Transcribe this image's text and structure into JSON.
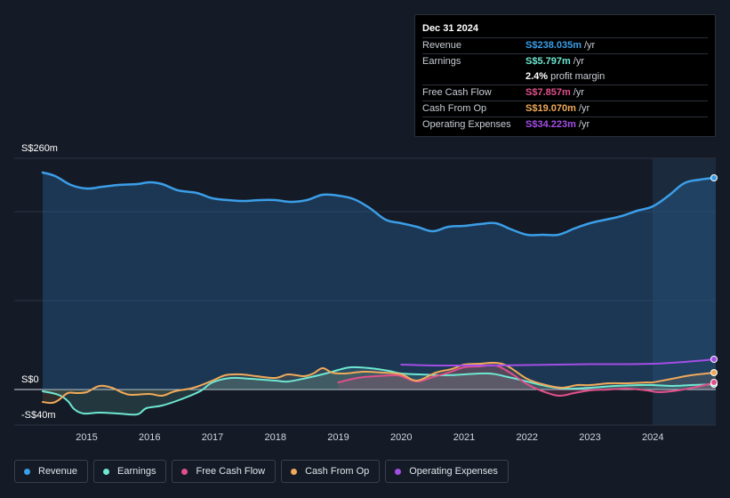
{
  "tooltip": {
    "date": "Dec 31 2024",
    "rows": [
      {
        "label": "Revenue",
        "value": "S$238.035m",
        "unit": "/yr",
        "color": "#3b9ee8"
      },
      {
        "label": "Earnings",
        "value": "S$5.797m",
        "unit": "/yr",
        "color": "#6ee7d2"
      },
      {
        "label": "",
        "value": "2.4%",
        "unit": "profit margin",
        "color": "#ffffff"
      },
      {
        "label": "Free Cash Flow",
        "value": "S$7.857m",
        "unit": "/yr",
        "color": "#e0508a"
      },
      {
        "label": "Cash From Op",
        "value": "S$19.070m",
        "unit": "/yr",
        "color": "#f0a95a"
      },
      {
        "label": "Operating Expenses",
        "value": "S$34.223m",
        "unit": "/yr",
        "color": "#a24ee6"
      }
    ]
  },
  "legend": [
    {
      "label": "Revenue",
      "color": "#3b9ee8"
    },
    {
      "label": "Earnings",
      "color": "#6ee7d2"
    },
    {
      "label": "Free Cash Flow",
      "color": "#e0508a"
    },
    {
      "label": "Cash From Op",
      "color": "#f0a95a"
    },
    {
      "label": "Operating Expenses",
      "color": "#a24ee6"
    }
  ],
  "chart_data": {
    "type": "line",
    "title": "",
    "y_axis_labels": {
      "top": "S$260m",
      "zero": "S$0",
      "bottom": "-S$40m"
    },
    "ylim": [
      -40,
      260
    ],
    "xlim": [
      2014.3,
      2025.0
    ],
    "x_ticks": [
      2015,
      2016,
      2017,
      2018,
      2019,
      2020,
      2021,
      2022,
      2023,
      2024
    ],
    "x_tick_labels": [
      "2015",
      "2016",
      "2017",
      "2018",
      "2019",
      "2020",
      "2021",
      "2022",
      "2023",
      "2024"
    ],
    "highlight_start": 2024.0,
    "series": [
      {
        "name": "Revenue",
        "color": "#3b9ee8",
        "fill": true,
        "x": [
          2014.3,
          2014.5,
          2014.75,
          2015.0,
          2015.25,
          2015.5,
          2015.8,
          2016.0,
          2016.2,
          2016.45,
          2016.75,
          2017.0,
          2017.25,
          2017.5,
          2017.75,
          2018.0,
          2018.25,
          2018.5,
          2018.75,
          2019.0,
          2019.25,
          2019.5,
          2019.75,
          2020.0,
          2020.25,
          2020.5,
          2020.75,
          2021.0,
          2021.25,
          2021.5,
          2021.75,
          2022.0,
          2022.25,
          2022.5,
          2022.75,
          2023.0,
          2023.25,
          2023.5,
          2023.75,
          2024.0,
          2024.25,
          2024.5,
          2024.75,
          2025.0
        ],
        "values": [
          244,
          240,
          230,
          226,
          228,
          230,
          231,
          233,
          231,
          224,
          221,
          215,
          213,
          212,
          213,
          213,
          211,
          213,
          219,
          218,
          214,
          204,
          191,
          187,
          183,
          178,
          183,
          184,
          186,
          187,
          180,
          174,
          174,
          174,
          181,
          187,
          191,
          195,
          201,
          206,
          218,
          232,
          236,
          238
        ]
      },
      {
        "name": "Earnings",
        "color": "#6ee7d2",
        "fill": true,
        "x": [
          2014.3,
          2014.55,
          2014.7,
          2014.8,
          2014.95,
          2015.2,
          2015.5,
          2015.8,
          2015.95,
          2016.2,
          2016.5,
          2016.8,
          2017.0,
          2017.3,
          2017.6,
          2018.0,
          2018.2,
          2018.5,
          2018.8,
          2019.0,
          2019.2,
          2019.5,
          2019.8,
          2020.0,
          2020.3,
          2020.7,
          2021.0,
          2021.4,
          2021.7,
          2022.0,
          2022.3,
          2022.6,
          2023.0,
          2023.4,
          2023.8,
          2024.0,
          2024.3,
          2024.6,
          2025.0
        ],
        "values": [
          -2,
          -6,
          -13,
          -22,
          -27,
          -26,
          -27,
          -28,
          -21,
          -18,
          -11,
          -2,
          8,
          13,
          12,
          10,
          9,
          13,
          18,
          22,
          25,
          24,
          21,
          18,
          17,
          16,
          17,
          18,
          14,
          9,
          4,
          1,
          2,
          4,
          5,
          5,
          4,
          5,
          6
        ]
      },
      {
        "name": "Free Cash Flow",
        "color": "#e0508a",
        "fill": true,
        "x": [
          2019.0,
          2019.3,
          2019.6,
          2019.9,
          2020.0,
          2020.25,
          2020.5,
          2020.75,
          2021.0,
          2021.25,
          2021.5,
          2021.75,
          2022.0,
          2022.25,
          2022.5,
          2022.75,
          2023.0,
          2023.3,
          2023.6,
          2023.9,
          2024.1,
          2024.4,
          2024.7,
          2025.0
        ],
        "values": [
          8,
          13,
          15,
          16,
          15,
          9,
          14,
          19,
          25,
          26,
          27,
          18,
          6,
          -2,
          -7,
          -4,
          -1,
          0,
          1,
          -1,
          -3,
          -1,
          3,
          8
        ]
      },
      {
        "name": "Cash From Op",
        "color": "#f0a95a",
        "fill": true,
        "x": [
          2014.3,
          2014.45,
          2014.55,
          2014.7,
          2014.85,
          2015.0,
          2015.2,
          2015.4,
          2015.55,
          2015.7,
          2016.0,
          2016.2,
          2016.4,
          2016.7,
          2017.0,
          2017.2,
          2017.45,
          2017.7,
          2018.0,
          2018.2,
          2018.45,
          2018.6,
          2018.75,
          2018.9,
          2019.1,
          2019.4,
          2019.7,
          2020.0,
          2020.25,
          2020.55,
          2020.8,
          2021.0,
          2021.25,
          2021.5,
          2021.7,
          2022.0,
          2022.3,
          2022.55,
          2022.8,
          2023.0,
          2023.3,
          2023.6,
          2023.9,
          2024.0,
          2024.3,
          2024.6,
          2025.0
        ],
        "values": [
          -14,
          -15,
          -12,
          -4,
          -4,
          -3,
          4,
          2,
          -3,
          -6,
          -5,
          -7,
          -2,
          2,
          10,
          16,
          17,
          15,
          13,
          17,
          15,
          18,
          24,
          19,
          18,
          20,
          19,
          17,
          10,
          19,
          23,
          28,
          29,
          30,
          26,
          12,
          5,
          2,
          5,
          5,
          7,
          7,
          8,
          8,
          12,
          16,
          19
        ]
      },
      {
        "name": "Operating Expenses",
        "color": "#a24ee6",
        "fill": false,
        "x": [
          2020.0,
          2020.5,
          2021.0,
          2021.5,
          2022.0,
          2022.5,
          2023.0,
          2023.5,
          2024.0,
          2024.5,
          2025.0
        ],
        "values": [
          28,
          27,
          27,
          27,
          27.5,
          28,
          28.5,
          28.5,
          29,
          31,
          34
        ]
      }
    ]
  }
}
